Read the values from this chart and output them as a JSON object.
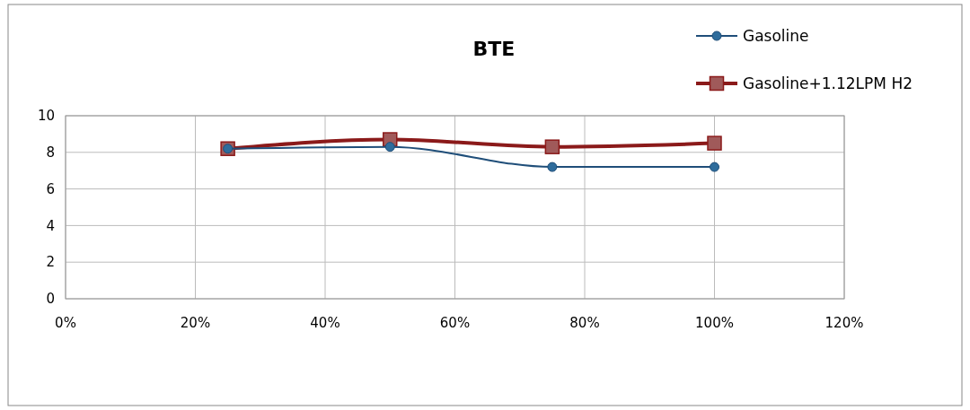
{
  "chart_data": {
    "type": "line",
    "title": "BTE",
    "x": [
      0.25,
      0.5,
      0.75,
      1.0
    ],
    "series": [
      {
        "name": "Gasoline",
        "color": "#1f4e79",
        "marker": "circle",
        "values": [
          8.2,
          8.3,
          7.2,
          7.2
        ]
      },
      {
        "name": "Gasoline+1.12LPM H2",
        "color": "#8b1a1a",
        "marker": "square",
        "values": [
          8.2,
          8.7,
          8.3,
          8.5
        ]
      }
    ],
    "xlim": [
      0,
      1.2
    ],
    "xticks": [
      {
        "value": 0,
        "label": "0%"
      },
      {
        "value": 0.2,
        "label": "20%"
      },
      {
        "value": 0.4,
        "label": "40%"
      },
      {
        "value": 0.6,
        "label": "60%"
      },
      {
        "value": 0.8,
        "label": "80%"
      },
      {
        "value": 1.0,
        "label": "100%"
      },
      {
        "value": 1.2,
        "label": "120%"
      }
    ],
    "ylim": [
      0,
      10
    ],
    "yticks": [
      0,
      2,
      4,
      6,
      8,
      10
    ],
    "grid": true,
    "legend": "top right"
  }
}
